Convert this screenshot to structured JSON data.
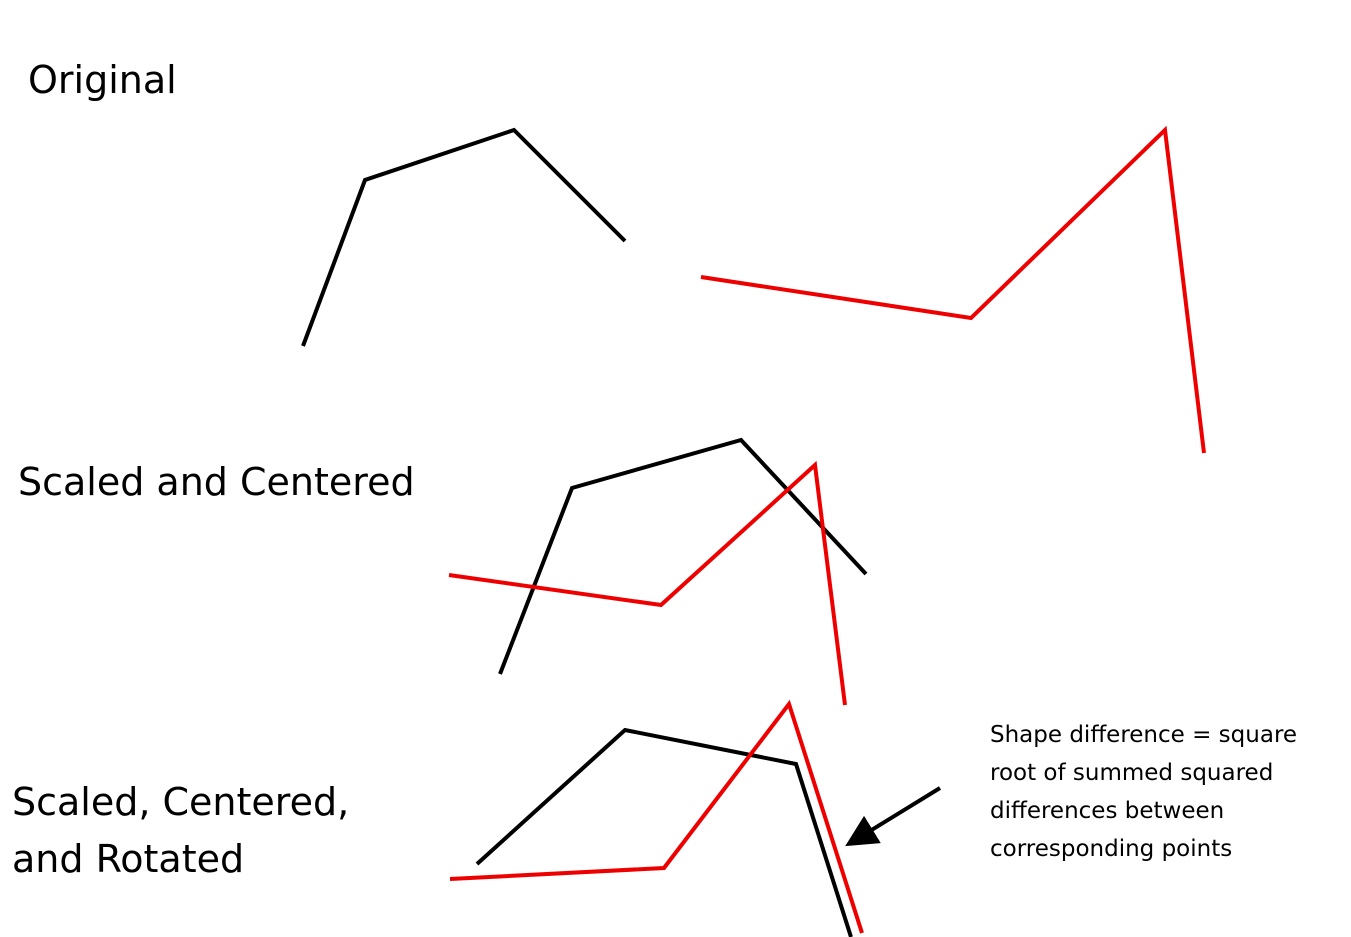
{
  "labels": {
    "original": "Original",
    "scaled_centered": "Scaled and Centered",
    "scaled_centered_rotated": [
      "Scaled, Centered,",
      "and Rotated"
    ]
  },
  "note": {
    "lines": [
      "Shape difference = square",
      "root of summed squared",
      "differences between",
      "corresponding points"
    ]
  },
  "colors": {
    "shape_a": "#000000",
    "shape_b": "#ee0000",
    "arrow": "#000000"
  }
}
